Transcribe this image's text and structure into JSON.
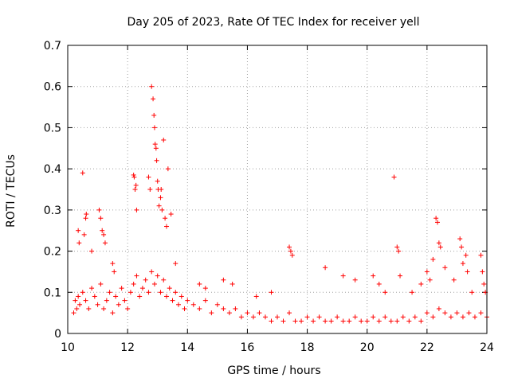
{
  "chart_data": {
    "type": "scatter",
    "title": "Day 205 of 2023, Rate Of TEC Index for receiver yell",
    "xlabel": "GPS time / hours",
    "ylabel": "ROTI / TECUs",
    "xlim": [
      10,
      24
    ],
    "ylim": [
      0,
      0.7
    ],
    "xticks": [
      "10",
      "12",
      "14",
      "16",
      "18",
      "20",
      "22",
      "24"
    ],
    "yticks": [
      "0",
      "0.1",
      "0.2",
      "0.3",
      "0.4",
      "0.5",
      "0.6",
      "0.7"
    ],
    "grid": true,
    "marker": "+",
    "color": "#ff0000",
    "series": [
      {
        "x": [
          10.2,
          10.25,
          10.3,
          10.35,
          10.4,
          10.5,
          10.6,
          10.7,
          10.8,
          10.9,
          11.0,
          11.1,
          11.2,
          11.3,
          11.4,
          11.5,
          11.6,
          11.7,
          11.8,
          11.9,
          12.0,
          12.1,
          12.2,
          12.3,
          12.4,
          12.5,
          12.6,
          12.7,
          12.8,
          12.9,
          13.0,
          13.1,
          13.2,
          13.3,
          13.4,
          13.5,
          13.6,
          13.7,
          13.8,
          13.9,
          14.0,
          14.2,
          14.4,
          14.6,
          14.8,
          15.0,
          15.2,
          15.4,
          15.6,
          15.8,
          16.0,
          16.2,
          16.4,
          16.6,
          16.8,
          17.0,
          17.2,
          17.4,
          17.6,
          17.8,
          18.0,
          18.2,
          18.4,
          18.6,
          18.8,
          19.0,
          19.2,
          19.4,
          19.6,
          19.8,
          20.0,
          20.2,
          20.4,
          20.6,
          20.8,
          21.0,
          21.2,
          21.4,
          21.6,
          21.8,
          22.0,
          22.2,
          22.4,
          22.6,
          22.8,
          23.0,
          23.2,
          23.4,
          23.6,
          23.8,
          24.0,
          10.35,
          10.38,
          10.5,
          10.55,
          10.6,
          10.62,
          10.8,
          11.05,
          11.1,
          11.15,
          11.2,
          11.25,
          11.5,
          11.55,
          12.2,
          12.22,
          12.25,
          12.28,
          12.3,
          12.7,
          12.75,
          12.8,
          12.85,
          12.88,
          12.9,
          12.92,
          12.95,
          12.97,
          13.0,
          13.02,
          13.05,
          13.1,
          13.12,
          13.15,
          13.2,
          13.25,
          13.3,
          13.35,
          13.45,
          13.6,
          14.4,
          14.6,
          15.2,
          15.5,
          16.3,
          16.8,
          17.4,
          17.45,
          17.5,
          18.6,
          19.2,
          19.6,
          20.2,
          20.4,
          20.6,
          20.9,
          21.0,
          21.05,
          21.1,
          21.5,
          21.8,
          22.0,
          22.1,
          22.2,
          22.3,
          22.35,
          22.4,
          22.45,
          22.6,
          22.9,
          23.1,
          23.15,
          23.2,
          23.3,
          23.35,
          23.5,
          23.8,
          23.85,
          23.9,
          23.95
        ],
        "y": [
          0.05,
          0.08,
          0.06,
          0.09,
          0.07,
          0.1,
          0.08,
          0.06,
          0.11,
          0.09,
          0.07,
          0.12,
          0.06,
          0.08,
          0.1,
          0.05,
          0.09,
          0.07,
          0.11,
          0.08,
          0.06,
          0.1,
          0.12,
          0.14,
          0.09,
          0.11,
          0.13,
          0.1,
          0.15,
          0.12,
          0.14,
          0.1,
          0.13,
          0.09,
          0.11,
          0.08,
          0.1,
          0.07,
          0.09,
          0.06,
          0.08,
          0.07,
          0.06,
          0.08,
          0.05,
          0.07,
          0.06,
          0.05,
          0.06,
          0.04,
          0.05,
          0.04,
          0.05,
          0.04,
          0.03,
          0.04,
          0.03,
          0.05,
          0.03,
          0.03,
          0.04,
          0.03,
          0.04,
          0.03,
          0.03,
          0.04,
          0.03,
          0.03,
          0.04,
          0.03,
          0.03,
          0.04,
          0.03,
          0.04,
          0.03,
          0.03,
          0.04,
          0.03,
          0.04,
          0.03,
          0.05,
          0.04,
          0.06,
          0.05,
          0.04,
          0.05,
          0.04,
          0.05,
          0.04,
          0.05,
          0.04,
          0.25,
          0.22,
          0.39,
          0.24,
          0.28,
          0.29,
          0.2,
          0.3,
          0.28,
          0.25,
          0.24,
          0.22,
          0.17,
          0.15,
          0.385,
          0.38,
          0.35,
          0.36,
          0.3,
          0.38,
          0.35,
          0.6,
          0.57,
          0.53,
          0.5,
          0.46,
          0.45,
          0.42,
          0.37,
          0.35,
          0.31,
          0.33,
          0.35,
          0.3,
          0.47,
          0.28,
          0.26,
          0.4,
          0.29,
          0.17,
          0.12,
          0.11,
          0.13,
          0.12,
          0.09,
          0.1,
          0.21,
          0.2,
          0.19,
          0.16,
          0.14,
          0.13,
          0.14,
          0.12,
          0.1,
          0.38,
          0.21,
          0.2,
          0.14,
          0.1,
          0.12,
          0.15,
          0.13,
          0.18,
          0.28,
          0.27,
          0.22,
          0.21,
          0.16,
          0.13,
          0.23,
          0.21,
          0.17,
          0.19,
          0.15,
          0.1,
          0.19,
          0.15,
          0.12,
          0.1
        ]
      }
    ]
  }
}
